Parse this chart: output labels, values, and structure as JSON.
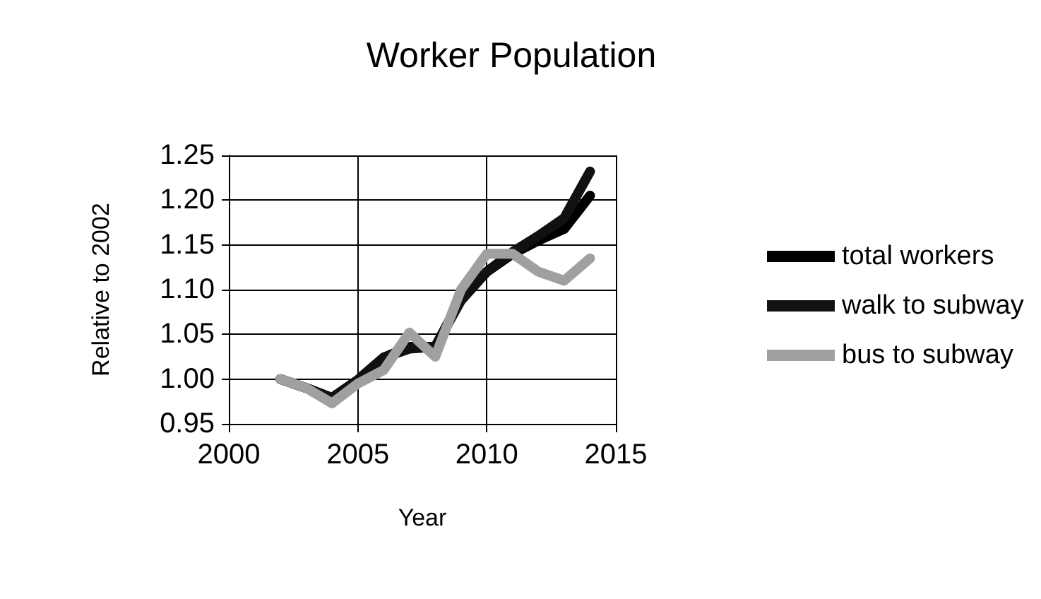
{
  "chart_data": {
    "type": "line",
    "title": "Worker Population",
    "xlabel": "Year",
    "ylabel": "Relative to 2002",
    "x": [
      2002,
      2003,
      2004,
      2005,
      2006,
      2007,
      2008,
      2009,
      2010,
      2011,
      2012,
      2013,
      2014
    ],
    "series": [
      {
        "name": "total workers",
        "color": "#000000",
        "values": [
          1.0,
          0.99,
          0.979,
          0.999,
          1.024,
          1.036,
          1.036,
          1.09,
          1.12,
          1.14,
          1.155,
          1.168,
          1.205
        ]
      },
      {
        "name": "walk to subway",
        "color": "#111111",
        "values": [
          1.0,
          0.99,
          0.979,
          0.999,
          1.024,
          1.034,
          1.036,
          1.088,
          1.12,
          1.142,
          1.16,
          1.18,
          1.232
        ]
      },
      {
        "name": "bus to subway",
        "color": "#a0a0a0",
        "values": [
          1.0,
          0.99,
          0.973,
          0.995,
          1.01,
          1.052,
          1.025,
          1.1,
          1.14,
          1.14,
          1.12,
          1.11,
          1.135
        ]
      }
    ],
    "xlim": [
      2000,
      2015
    ],
    "xticks": [
      2000,
      2005,
      2010,
      2015
    ],
    "ylim": [
      0.95,
      1.25
    ],
    "yticks": [
      {
        "value": 0.95,
        "label": "0.95"
      },
      {
        "value": 1.0,
        "label": "1.00"
      },
      {
        "value": 1.05,
        "label": "1.05"
      },
      {
        "value": 1.1,
        "label": "1.10"
      },
      {
        "value": 1.15,
        "label": "1.15"
      },
      {
        "value": 1.2,
        "label": "1.20"
      },
      {
        "value": 1.25,
        "label": "1.25"
      }
    ],
    "grid": true,
    "legend": "right",
    "marker": "none",
    "line_style": "solid"
  }
}
